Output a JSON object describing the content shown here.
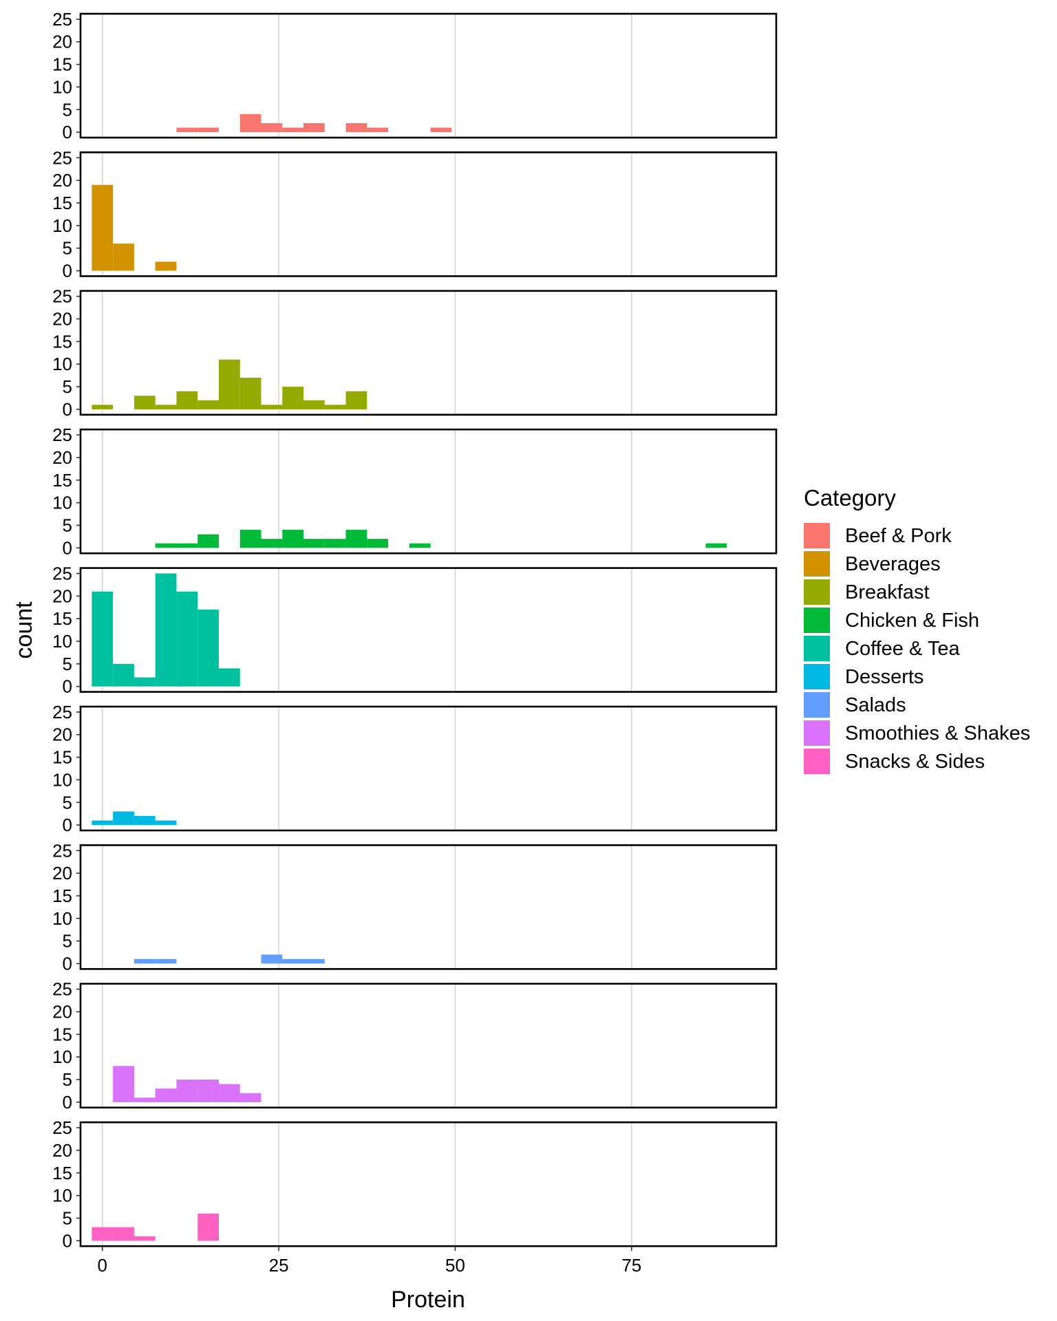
{
  "chart_data": {
    "type": "bar",
    "subtype": "faceted-histogram",
    "xlabel": "Protein",
    "ylabel": "count",
    "xlim": [
      -3.1,
      95.5
    ],
    "ylim": [
      -1.2,
      26.2
    ],
    "x_ticks": [
      0,
      25,
      50,
      75
    ],
    "x_tick_labels": [
      "0",
      "25",
      "50",
      "75"
    ],
    "y_ticks": [
      0,
      5,
      10,
      15,
      20,
      25
    ],
    "y_tick_labels": [
      "0",
      "5",
      "10",
      "15",
      "20",
      "25"
    ],
    "bin_width": 3,
    "vertical_grid": true,
    "legend": {
      "title": "Category",
      "position": "right"
    },
    "series": [
      {
        "name": "Beef & Pork",
        "color": "#F8766D",
        "bins": [
          {
            "x0": 10.5,
            "x1": 13.5,
            "count": 1
          },
          {
            "x0": 13.5,
            "x1": 16.5,
            "count": 1
          },
          {
            "x0": 19.5,
            "x1": 22.5,
            "count": 4
          },
          {
            "x0": 22.5,
            "x1": 25.5,
            "count": 2
          },
          {
            "x0": 25.5,
            "x1": 28.5,
            "count": 1
          },
          {
            "x0": 28.5,
            "x1": 31.5,
            "count": 2
          },
          {
            "x0": 34.5,
            "x1": 37.5,
            "count": 2
          },
          {
            "x0": 37.5,
            "x1": 40.5,
            "count": 1
          },
          {
            "x0": 46.5,
            "x1": 49.5,
            "count": 1
          }
        ]
      },
      {
        "name": "Beverages",
        "color": "#D39200",
        "bins": [
          {
            "x0": -1.5,
            "x1": 1.5,
            "count": 19
          },
          {
            "x0": 1.5,
            "x1": 4.5,
            "count": 6
          },
          {
            "x0": 7.5,
            "x1": 10.5,
            "count": 2
          }
        ]
      },
      {
        "name": "Breakfast",
        "color": "#93AA00",
        "bins": [
          {
            "x0": -1.5,
            "x1": 1.5,
            "count": 1
          },
          {
            "x0": 4.5,
            "x1": 7.5,
            "count": 3
          },
          {
            "x0": 7.5,
            "x1": 10.5,
            "count": 1
          },
          {
            "x0": 10.5,
            "x1": 13.5,
            "count": 4
          },
          {
            "x0": 13.5,
            "x1": 16.5,
            "count": 2
          },
          {
            "x0": 16.5,
            "x1": 19.5,
            "count": 11
          },
          {
            "x0": 19.5,
            "x1": 22.5,
            "count": 7
          },
          {
            "x0": 22.5,
            "x1": 25.5,
            "count": 1
          },
          {
            "x0": 25.5,
            "x1": 28.5,
            "count": 5
          },
          {
            "x0": 28.5,
            "x1": 31.5,
            "count": 2
          },
          {
            "x0": 31.5,
            "x1": 34.5,
            "count": 1
          },
          {
            "x0": 34.5,
            "x1": 37.5,
            "count": 4
          }
        ]
      },
      {
        "name": "Chicken & Fish",
        "color": "#00BA38",
        "bins": [
          {
            "x0": 7.5,
            "x1": 10.5,
            "count": 1
          },
          {
            "x0": 10.5,
            "x1": 13.5,
            "count": 1
          },
          {
            "x0": 13.5,
            "x1": 16.5,
            "count": 3
          },
          {
            "x0": 19.5,
            "x1": 22.5,
            "count": 4
          },
          {
            "x0": 22.5,
            "x1": 25.5,
            "count": 2
          },
          {
            "x0": 25.5,
            "x1": 28.5,
            "count": 4
          },
          {
            "x0": 28.5,
            "x1": 31.5,
            "count": 2
          },
          {
            "x0": 31.5,
            "x1": 34.5,
            "count": 2
          },
          {
            "x0": 34.5,
            "x1": 37.5,
            "count": 4
          },
          {
            "x0": 37.5,
            "x1": 40.5,
            "count": 2
          },
          {
            "x0": 43.5,
            "x1": 46.5,
            "count": 1
          },
          {
            "x0": 85.5,
            "x1": 88.5,
            "count": 1
          }
        ]
      },
      {
        "name": "Coffee & Tea",
        "color": "#00C19F",
        "bins": [
          {
            "x0": -1.5,
            "x1": 1.5,
            "count": 21
          },
          {
            "x0": 1.5,
            "x1": 4.5,
            "count": 5
          },
          {
            "x0": 4.5,
            "x1": 7.5,
            "count": 2
          },
          {
            "x0": 7.5,
            "x1": 10.5,
            "count": 25
          },
          {
            "x0": 10.5,
            "x1": 13.5,
            "count": 21
          },
          {
            "x0": 13.5,
            "x1": 16.5,
            "count": 17
          },
          {
            "x0": 16.5,
            "x1": 19.5,
            "count": 4
          }
        ]
      },
      {
        "name": "Desserts",
        "color": "#00B9E3",
        "bins": [
          {
            "x0": -1.5,
            "x1": 1.5,
            "count": 1
          },
          {
            "x0": 1.5,
            "x1": 4.5,
            "count": 3
          },
          {
            "x0": 4.5,
            "x1": 7.5,
            "count": 2
          },
          {
            "x0": 7.5,
            "x1": 10.5,
            "count": 1
          }
        ]
      },
      {
        "name": "Salads",
        "color": "#619CFF",
        "bins": [
          {
            "x0": 4.5,
            "x1": 7.5,
            "count": 1
          },
          {
            "x0": 7.5,
            "x1": 10.5,
            "count": 1
          },
          {
            "x0": 22.5,
            "x1": 25.5,
            "count": 2
          },
          {
            "x0": 25.5,
            "x1": 28.5,
            "count": 1
          },
          {
            "x0": 28.5,
            "x1": 31.5,
            "count": 1
          }
        ]
      },
      {
        "name": "Smoothies & Shakes",
        "color": "#DB72FB",
        "bins": [
          {
            "x0": 1.5,
            "x1": 4.5,
            "count": 8
          },
          {
            "x0": 4.5,
            "x1": 7.5,
            "count": 1
          },
          {
            "x0": 7.5,
            "x1": 10.5,
            "count": 3
          },
          {
            "x0": 10.5,
            "x1": 13.5,
            "count": 5
          },
          {
            "x0": 13.5,
            "x1": 16.5,
            "count": 5
          },
          {
            "x0": 16.5,
            "x1": 19.5,
            "count": 4
          },
          {
            "x0": 19.5,
            "x1": 22.5,
            "count": 2
          }
        ]
      },
      {
        "name": "Snacks & Sides",
        "color": "#FF61C3",
        "bins": [
          {
            "x0": -1.5,
            "x1": 1.5,
            "count": 3
          },
          {
            "x0": 1.5,
            "x1": 4.5,
            "count": 3
          },
          {
            "x0": 4.5,
            "x1": 7.5,
            "count": 1
          },
          {
            "x0": 13.5,
            "x1": 16.5,
            "count": 6
          }
        ]
      }
    ]
  }
}
